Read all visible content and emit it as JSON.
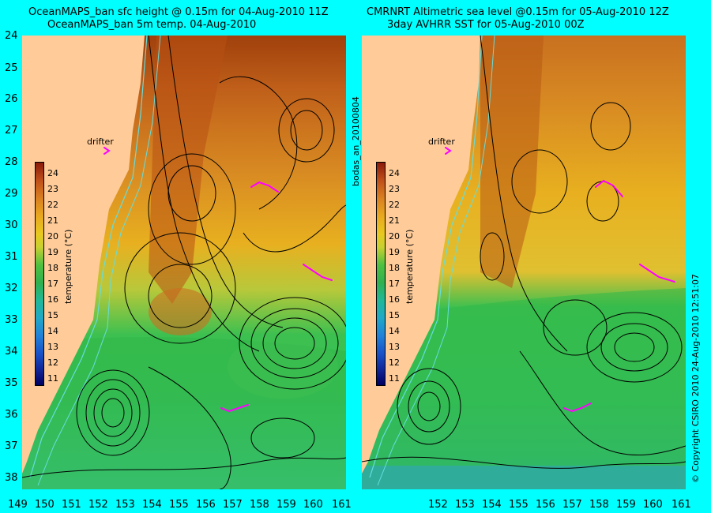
{
  "left_panel": {
    "title_line1": "OceanMAPS_ban sfc height @ 0.15m for 04-Aug-2010 11Z",
    "title_line2": "OceanMAPS_ban 5m temp. 04-Aug-2010",
    "drifter_label": "drifter"
  },
  "right_panel": {
    "title_line1": "CMRNRT Altimetric sea level  @0.15m  for 05-Aug-2010 12Z",
    "title_line2": "3day AVHRR SST for 05-Aug-2010 00Z",
    "drifter_label": "drifter"
  },
  "middle_label": "bodas_an_20100804",
  "copyright": "© Copyright CSIRO 2010    24-Aug-2010 12:51:07",
  "latitudes": [
    "24",
    "25",
    "26",
    "27",
    "28",
    "29",
    "30",
    "31",
    "32",
    "33",
    "34",
    "35",
    "36",
    "37",
    "38"
  ],
  "longitudes_left": [
    "149",
    "150",
    "151",
    "152",
    "153",
    "154",
    "155",
    "156",
    "157",
    "158",
    "159",
    "160",
    "161"
  ],
  "longitudes_right": [
    "152",
    "153",
    "154",
    "155",
    "156",
    "157",
    "158",
    "159",
    "160",
    "161"
  ],
  "colorbar": {
    "title": "temperature (°C)",
    "ticks": [
      "24",
      "23",
      "22",
      "21",
      "20",
      "19",
      "18",
      "17",
      "16",
      "15",
      "14",
      "13",
      "12",
      "11"
    ]
  },
  "colors": {
    "background": "#00ffff",
    "land": "#ffcc99",
    "drifter": "#ff00ff",
    "contour": "#000000",
    "isobath": "#66dddd"
  }
}
